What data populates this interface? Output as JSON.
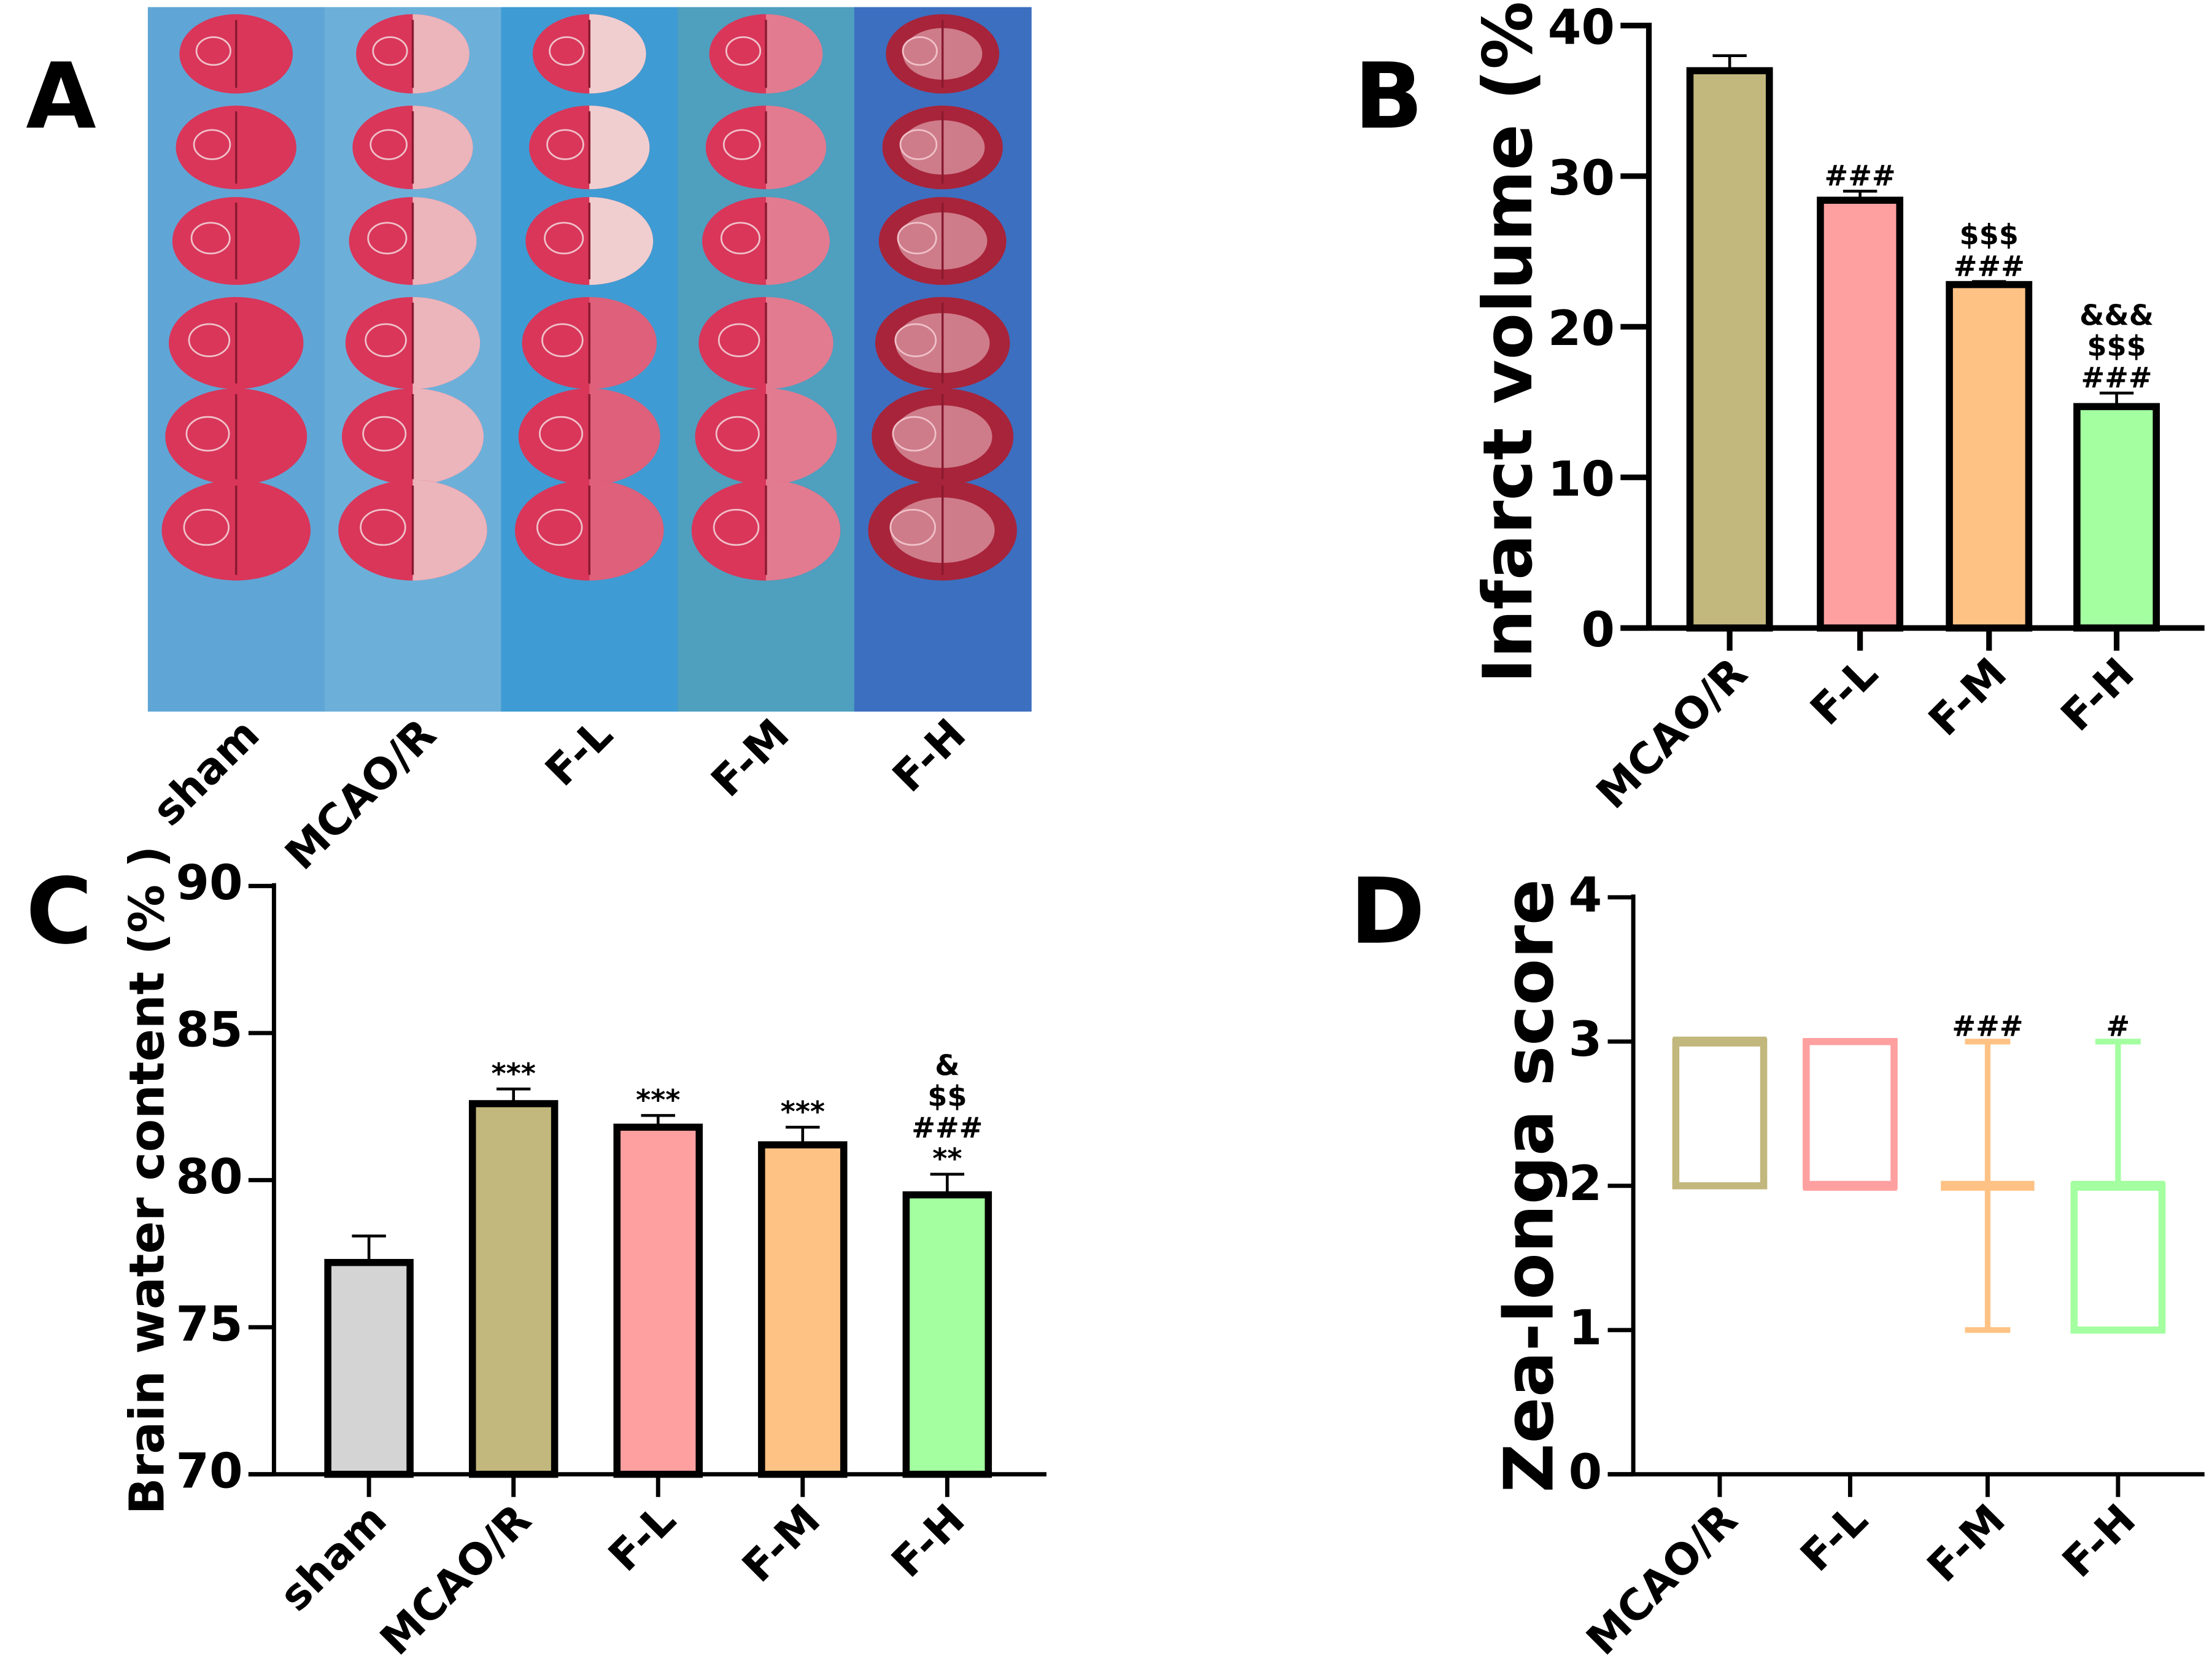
{
  "panel_a": {
    "letter": "A",
    "column_labels": [
      "sham",
      "MCAO/R",
      "F-L",
      "F-M",
      "F-H"
    ],
    "background_colors": [
      "#5fa6d6",
      "#6cb0da",
      "#3f9bd3",
      "#4f9fbf",
      "#3c6fc0"
    ]
  },
  "chart_data": [
    {
      "letter": "B",
      "type": "bar",
      "ylabel": "Infarct volume (%)",
      "categories": [
        "MCAO/R",
        "F-L",
        "F-M",
        "F-H"
      ],
      "values": [
        37.0,
        28.4,
        22.8,
        14.7
      ],
      "error_upper": [
        38.0,
        29.0,
        23.0,
        15.6
      ],
      "annotations": [
        [],
        [
          "###"
        ],
        [
          "$$$",
          "###"
        ],
        [
          "&&&",
          "$$$",
          "###"
        ]
      ],
      "colors": [
        "#c2b77c",
        "#ffa0a0",
        "#ffc285",
        "#a3ffa0"
      ],
      "ylim": [
        0,
        40
      ],
      "yticks": [
        0,
        10,
        20,
        30,
        40
      ],
      "grid": false
    },
    {
      "letter": "C",
      "type": "bar",
      "ylabel": "Brain water content (% )",
      "categories": [
        "sham",
        "MCAO/R",
        "F-L",
        "F-M",
        "F-H"
      ],
      "values": [
        77.2,
        82.6,
        81.8,
        81.2,
        79.5
      ],
      "error_upper": [
        78.1,
        83.1,
        82.2,
        81.8,
        80.2
      ],
      "annotations": [
        [],
        [
          "***"
        ],
        [
          "***"
        ],
        [
          "***"
        ],
        [
          "&",
          "$$",
          "###",
          "**"
        ]
      ],
      "colors": [
        "#d4d4d4",
        "#c2b77c",
        "#ffa0a0",
        "#ffc285",
        "#a3ffa0"
      ],
      "ylim": [
        70,
        90
      ],
      "yticks": [
        70,
        75,
        80,
        85,
        90
      ],
      "grid": false
    },
    {
      "letter": "D",
      "type": "box",
      "ylabel": "Zea-longa score",
      "categories": [
        "MCAO/R",
        "F-L",
        "F-M",
        "F-H"
      ],
      "boxes": [
        {
          "min": 2,
          "q1": 2,
          "median": 3,
          "q3": 3,
          "max": 3
        },
        {
          "min": 2,
          "q1": 2,
          "median": 2,
          "q3": 3,
          "max": 3
        },
        {
          "min": 1,
          "q1": 2,
          "median": 2,
          "q3": 2,
          "max": 3
        },
        {
          "min": 1,
          "q1": 1,
          "median": 2,
          "q3": 2,
          "max": 3
        }
      ],
      "annotations": [
        [],
        [],
        [
          "###"
        ],
        [
          "#"
        ]
      ],
      "colors": [
        "#c2b77c",
        "#ffa0a0",
        "#ffc285",
        "#a3ffa0"
      ],
      "ylim": [
        0,
        4
      ],
      "yticks": [
        0,
        1,
        2,
        3,
        4
      ],
      "grid": false
    }
  ]
}
